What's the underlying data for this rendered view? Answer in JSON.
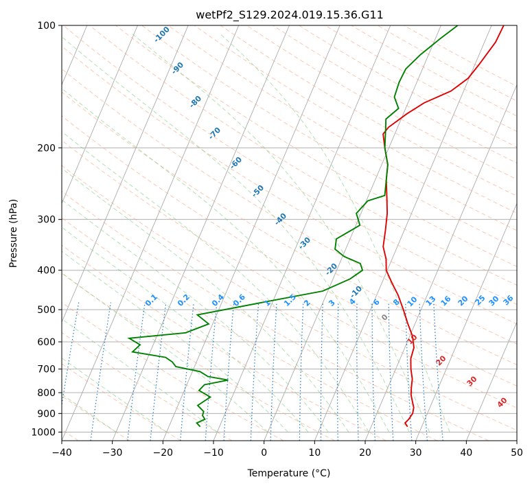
{
  "chart_data": {
    "type": "line",
    "title": "wetPf2_S129.2024.019.15.36.G11",
    "xlabel": "Temperature (°C)",
    "ylabel": "Pressure (hPa)",
    "xlim": [
      -40,
      50
    ],
    "ylim": [
      1050,
      100
    ],
    "y_scale": "log",
    "x_ticks": [
      -40,
      -30,
      -20,
      -10,
      0,
      10,
      20,
      30,
      40,
      50
    ],
    "y_ticks": [
      100,
      200,
      300,
      400,
      500,
      600,
      700,
      800,
      900,
      1000
    ],
    "grid": true,
    "skew_t": true,
    "series": [
      {
        "color": "#e00000",
        "points": [
          [
            12.4,
            100
          ],
          [
            12.2,
            110
          ],
          [
            10.8,
            125
          ],
          [
            9.8,
            135
          ],
          [
            7.5,
            145
          ],
          [
            3.2,
            155
          ],
          [
            0.7,
            165
          ],
          [
            -1.8,
            178
          ],
          [
            -2.3,
            185
          ],
          [
            -0.8,
            200
          ],
          [
            1.2,
            220
          ],
          [
            2.2,
            240
          ],
          [
            3.8,
            265
          ],
          [
            5.2,
            290
          ],
          [
            6.3,
            320
          ],
          [
            7.2,
            350
          ],
          [
            8.8,
            375
          ],
          [
            9.8,
            400
          ],
          [
            12.0,
            430
          ],
          [
            14.2,
            460
          ],
          [
            16.5,
            500
          ],
          [
            18.5,
            540
          ],
          [
            20.5,
            580
          ],
          [
            21.8,
            620
          ],
          [
            22.1,
            660
          ],
          [
            23.0,
            700
          ],
          [
            24.1,
            740
          ],
          [
            24.7,
            780
          ],
          [
            25.2,
            810
          ],
          [
            26.0,
            840
          ],
          [
            26.8,
            870
          ],
          [
            27.1,
            900
          ],
          [
            26.8,
            930
          ],
          [
            26.4,
            950
          ],
          [
            27.2,
            970
          ]
        ]
      },
      {
        "color": "#008000",
        "points": [
          [
            3.3,
            100
          ],
          [
            0.9,
            108
          ],
          [
            -1.6,
            118
          ],
          [
            -3.3,
            128
          ],
          [
            -3.5,
            138
          ],
          [
            -3.2,
            150
          ],
          [
            -1.4,
            160
          ],
          [
            -3.0,
            170
          ],
          [
            -2.2,
            180
          ],
          [
            -0.8,
            200
          ],
          [
            1.2,
            220
          ],
          [
            2.2,
            240
          ],
          [
            3.2,
            262
          ],
          [
            0.3,
            270
          ],
          [
            -0.9,
            290
          ],
          [
            0.8,
            310
          ],
          [
            -2.7,
            335
          ],
          [
            -2.1,
            355
          ],
          [
            0.3,
            370
          ],
          [
            4.1,
            385
          ],
          [
            5.1,
            400
          ],
          [
            3.4,
            420
          ],
          [
            -1.0,
            450
          ],
          [
            -12.0,
            480
          ],
          [
            -23.8,
            515
          ],
          [
            -20.8,
            542
          ],
          [
            -24.6,
            570
          ],
          [
            -35.3,
            588
          ],
          [
            -32.6,
            610
          ],
          [
            -33.5,
            635
          ],
          [
            -26.5,
            655
          ],
          [
            -24.8,
            672
          ],
          [
            -23.7,
            690
          ],
          [
            -18.5,
            710
          ],
          [
            -16.5,
            730
          ],
          [
            -12.2,
            745
          ],
          [
            -16.5,
            765
          ],
          [
            -17.1,
            790
          ],
          [
            -14.3,
            820
          ],
          [
            -16.1,
            860
          ],
          [
            -14.4,
            890
          ],
          [
            -14.3,
            910
          ],
          [
            -13.5,
            930
          ],
          [
            -14.8,
            950
          ],
          [
            -13.8,
            970
          ]
        ]
      }
    ],
    "dry_adiabat_labels": [
      "-100",
      "-90",
      "-80",
      "-70",
      "-60",
      "-50",
      "-40",
      "-30",
      "-20",
      "-10"
    ],
    "mixing_ratio_labels": [
      "0.1",
      "0.2",
      "0.4",
      "0.6",
      "1",
      "1.5",
      "2",
      "3",
      "4",
      "6",
      "8",
      "10",
      "13",
      "16",
      "20",
      "25",
      "30",
      "36"
    ],
    "moist_adiabat_labels": [
      "0",
      "10",
      "20",
      "30",
      "40"
    ],
    "colors": {
      "temperature": "#e00000",
      "dewpoint": "#008000",
      "isotherm": "#aaaaaa",
      "dry_adiabat": "#f4a582",
      "moist_adiabat": "#74c476",
      "mixing_ratio": "#1e78c8",
      "dry_label": "#1f77b4",
      "mixing_label": "#1e90ff",
      "moist_label": "#d62728"
    }
  }
}
